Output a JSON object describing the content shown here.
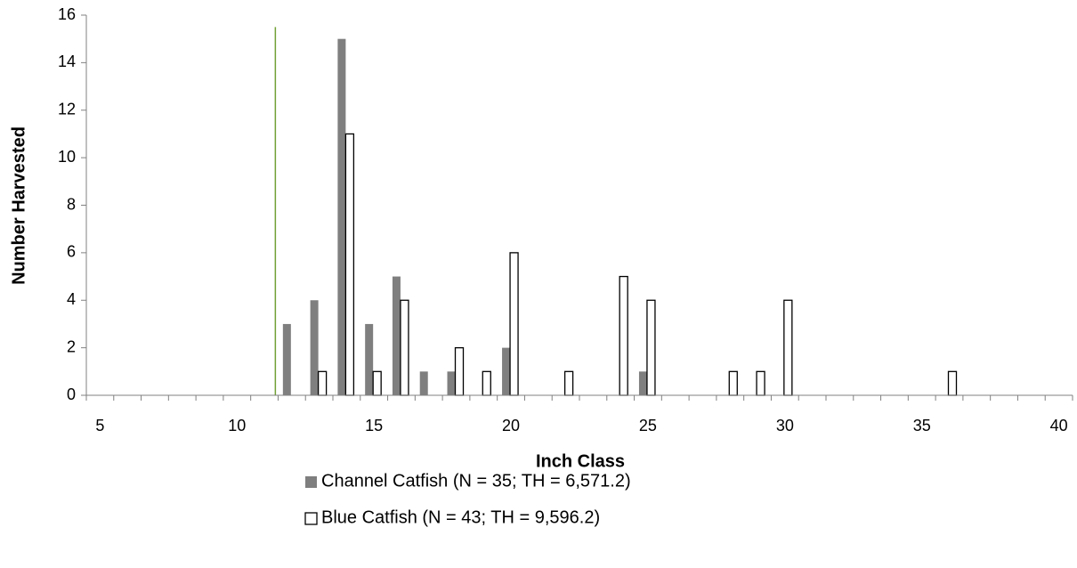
{
  "chart_data": {
    "type": "bar",
    "x_label": "Inch Class",
    "y_label": "Number Harvested",
    "categories": [
      5,
      null,
      null,
      null,
      null,
      10,
      null,
      null,
      null,
      null,
      15,
      null,
      null,
      null,
      null,
      20,
      null,
      null,
      null,
      null,
      25,
      null,
      null,
      null,
      null,
      30,
      null,
      null,
      null,
      null,
      35,
      null,
      null,
      null,
      null,
      40
    ],
    "series": [
      {
        "name": "Channel Catfish (N = 35; TH = 6,571.2)",
        "color": "#7f7f7f",
        "values": [
          0,
          0,
          0,
          0,
          0,
          0,
          0,
          3,
          4,
          15,
          3,
          5,
          1,
          1,
          0,
          2,
          0,
          0,
          0,
          0,
          1,
          0,
          0,
          0,
          0,
          0,
          0,
          0,
          0,
          0,
          0,
          0,
          0,
          0,
          0,
          0
        ]
      },
      {
        "name": "Blue Catfish (N = 43; TH = 9,596.2)",
        "color": "#ffffff",
        "values": [
          0,
          0,
          0,
          0,
          0,
          0,
          0,
          0,
          1,
          11,
          1,
          4,
          0,
          2,
          1,
          6,
          0,
          1,
          0,
          5,
          4,
          0,
          0,
          1,
          1,
          4,
          0,
          0,
          0,
          0,
          0,
          1,
          0,
          0,
          0,
          0
        ]
      }
    ],
    "ylim": [
      0,
      16
    ],
    "yticks": [
      0,
      2,
      4,
      6,
      8,
      10,
      12,
      14,
      16
    ],
    "reference_line": {
      "x": 11.4,
      "y_top": 15.5,
      "color": "#70a035"
    },
    "grid": false,
    "legend": "bottom"
  }
}
